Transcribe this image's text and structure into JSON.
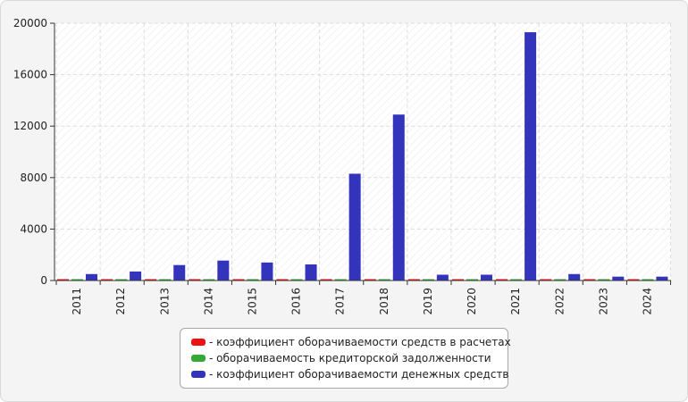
{
  "chart_data": {
    "type": "bar",
    "categories": [
      "2011",
      "2012",
      "2013",
      "2014",
      "2015",
      "2016",
      "2017",
      "2018",
      "2019",
      "2020",
      "2021",
      "2022",
      "2023",
      "2024"
    ],
    "series": [
      {
        "name": "коэффициент оборачиваемости средств в расчетах",
        "color": "#ee1111",
        "values": [
          10,
          10,
          10,
          10,
          10,
          10,
          10,
          10,
          10,
          10,
          10,
          10,
          10,
          10
        ]
      },
      {
        "name": "оборачиваемость кредиторской задолженности",
        "color": "#33aa33",
        "values": [
          10,
          10,
          10,
          10,
          10,
          10,
          10,
          10,
          10,
          10,
          10,
          10,
          10,
          10
        ]
      },
      {
        "name": "коэффициент оборачиваемости денежных средств",
        "color": "#3333bb",
        "values": [
          500,
          700,
          1200,
          1550,
          1400,
          1250,
          8300,
          12900,
          450,
          450,
          19300,
          500,
          300,
          300
        ]
      }
    ],
    "y_ticks": [
      0,
      4000,
      8000,
      12000,
      16000,
      20000
    ],
    "ylim": [
      0,
      20000
    ],
    "grid": true,
    "legend_position": "bottom",
    "legend_prefix": "- "
  }
}
